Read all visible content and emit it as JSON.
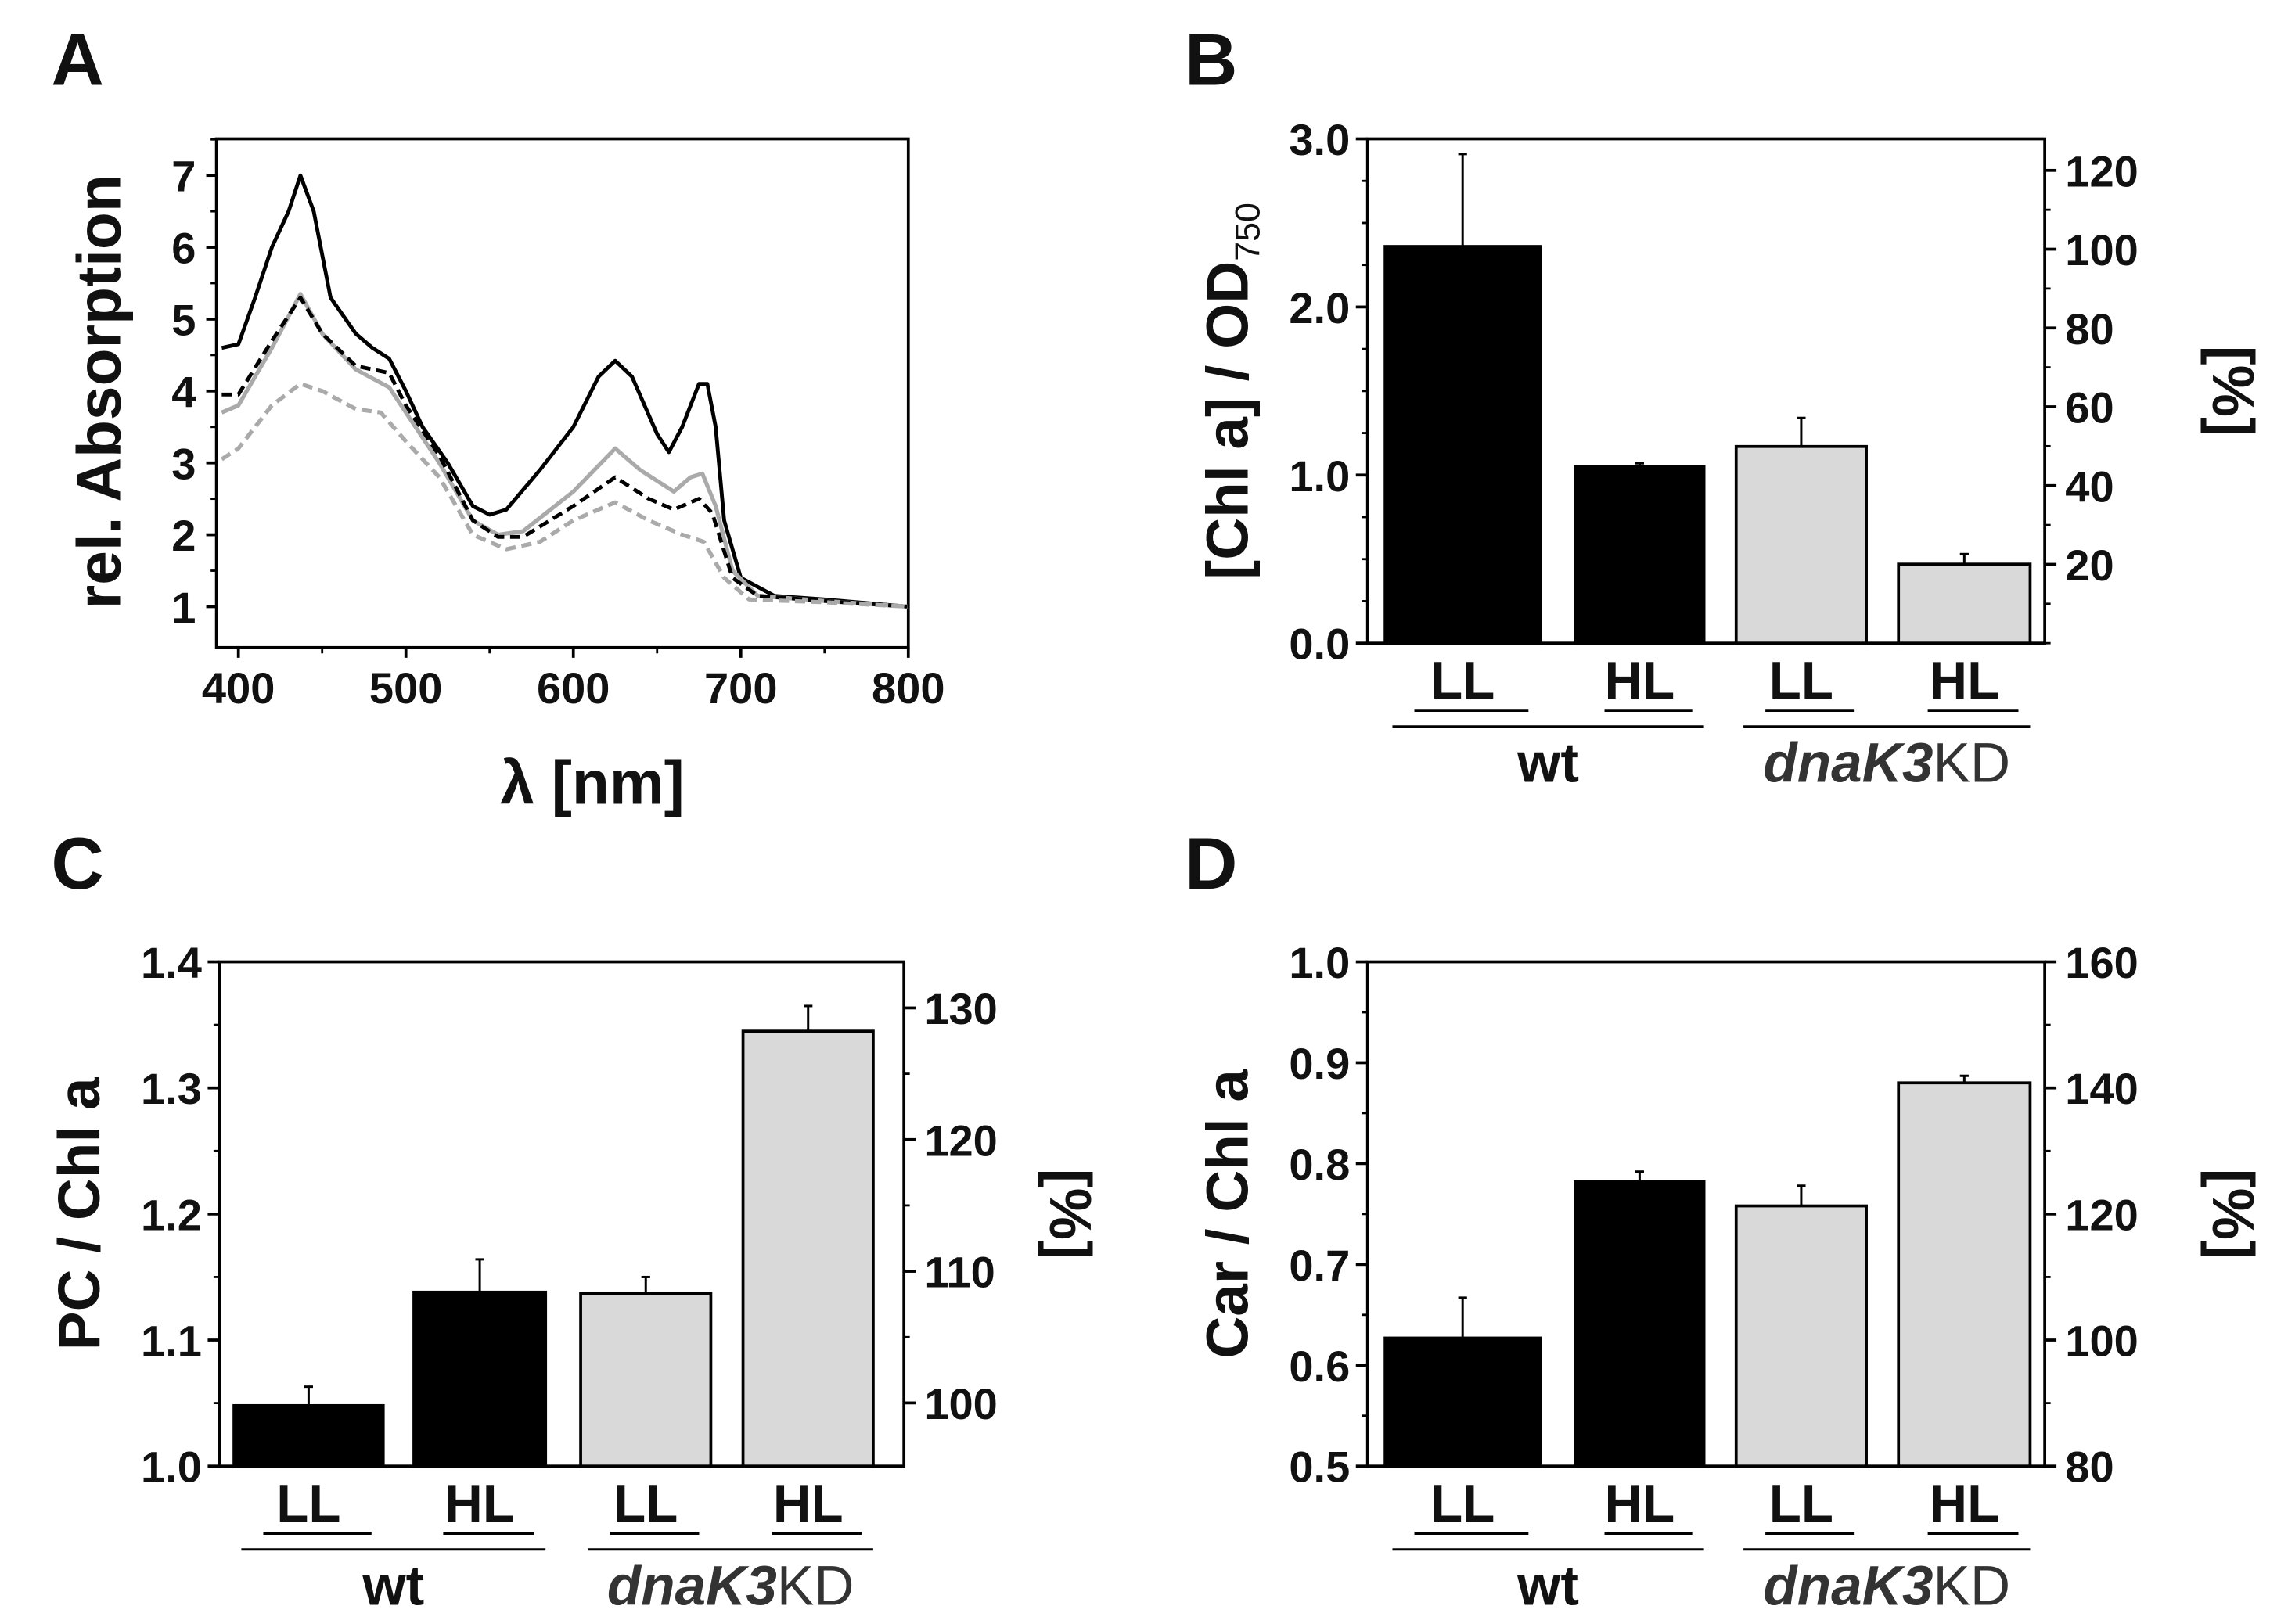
{
  "chart_data": [
    {
      "panel": "A",
      "type": "line",
      "xlabel": "λ [nm]",
      "ylabel": "rel. Absorption",
      "xlim": [
        390,
        800
      ],
      "ylim": [
        0.45,
        7.5
      ],
      "xticks": [
        "400",
        "500",
        "600",
        "700",
        "800"
      ],
      "yticks": [
        "1",
        "2",
        "3",
        "4",
        "5",
        "6",
        "7"
      ],
      "series": [
        {
          "style": "solid",
          "color": "#000000",
          "points": [
            [
              390,
              4.6
            ],
            [
              400,
              4.65
            ],
            [
              410,
              5.3
            ],
            [
              420,
              6.0
            ],
            [
              430,
              6.5
            ],
            [
              437,
              7.0
            ],
            [
              445,
              6.5
            ],
            [
              455,
              5.3
            ],
            [
              470,
              4.8
            ],
            [
              480,
              4.6
            ],
            [
              490,
              4.45
            ],
            [
              500,
              4.0
            ],
            [
              510,
              3.5
            ],
            [
              525,
              3.0
            ],
            [
              540,
              2.4
            ],
            [
              550,
              2.28
            ],
            [
              560,
              2.35
            ],
            [
              580,
              2.9
            ],
            [
              600,
              3.5
            ],
            [
              615,
              4.2
            ],
            [
              625,
              4.42
            ],
            [
              635,
              4.2
            ],
            [
              650,
              3.4
            ],
            [
              657,
              3.15
            ],
            [
              665,
              3.5
            ],
            [
              675,
              4.1
            ],
            [
              680,
              4.1
            ],
            [
              685,
              3.5
            ],
            [
              690,
              2.2
            ],
            [
              700,
              1.4
            ],
            [
              720,
              1.15
            ],
            [
              750,
              1.1
            ],
            [
              800,
              1.0
            ]
          ]
        },
        {
          "style": "solid",
          "color": "#aaaaaa",
          "points": [
            [
              390,
              3.7
            ],
            [
              400,
              3.8
            ],
            [
              420,
              4.6
            ],
            [
              437,
              5.35
            ],
            [
              450,
              4.8
            ],
            [
              470,
              4.3
            ],
            [
              490,
              4.05
            ],
            [
              500,
              3.7
            ],
            [
              520,
              3.0
            ],
            [
              540,
              2.2
            ],
            [
              555,
              2.0
            ],
            [
              570,
              2.05
            ],
            [
              600,
              2.6
            ],
            [
              625,
              3.2
            ],
            [
              640,
              2.9
            ],
            [
              660,
              2.6
            ],
            [
              670,
              2.8
            ],
            [
              677,
              2.85
            ],
            [
              685,
              2.4
            ],
            [
              695,
              1.5
            ],
            [
              710,
              1.15
            ],
            [
              750,
              1.08
            ],
            [
              800,
              1.0
            ]
          ]
        },
        {
          "style": "dashed",
          "color": "#000000",
          "points": [
            [
              390,
              3.95
            ],
            [
              400,
              3.95
            ],
            [
              420,
              4.7
            ],
            [
              437,
              5.3
            ],
            [
              450,
              4.8
            ],
            [
              470,
              4.35
            ],
            [
              490,
              4.25
            ],
            [
              500,
              3.8
            ],
            [
              520,
              3.1
            ],
            [
              540,
              2.2
            ],
            [
              555,
              1.97
            ],
            [
              570,
              1.97
            ],
            [
              600,
              2.4
            ],
            [
              625,
              2.8
            ],
            [
              645,
              2.5
            ],
            [
              660,
              2.35
            ],
            [
              675,
              2.5
            ],
            [
              683,
              2.3
            ],
            [
              695,
              1.4
            ],
            [
              710,
              1.15
            ],
            [
              750,
              1.08
            ],
            [
              800,
              1.0
            ]
          ]
        },
        {
          "style": "dashed",
          "color": "#aaaaaa",
          "points": [
            [
              390,
              3.05
            ],
            [
              400,
              3.2
            ],
            [
              420,
              3.8
            ],
            [
              437,
              4.1
            ],
            [
              450,
              4.0
            ],
            [
              470,
              3.75
            ],
            [
              485,
              3.7
            ],
            [
              500,
              3.3
            ],
            [
              520,
              2.8
            ],
            [
              540,
              2.0
            ],
            [
              560,
              1.8
            ],
            [
              580,
              1.9
            ],
            [
              600,
              2.2
            ],
            [
              625,
              2.45
            ],
            [
              645,
              2.2
            ],
            [
              665,
              2.0
            ],
            [
              678,
              1.9
            ],
            [
              690,
              1.4
            ],
            [
              705,
              1.1
            ],
            [
              750,
              1.06
            ],
            [
              800,
              1.0
            ]
          ]
        }
      ]
    },
    {
      "panel": "B",
      "type": "bar",
      "ylabel": "[Chl a] / OD",
      "ylabel_sub": "750",
      "ylabel_right": "[%]",
      "ylim": [
        0,
        3.0
      ],
      "yticks": [
        "0.0",
        "1.0",
        "2.0",
        "3.0"
      ],
      "ylim_right": [
        0,
        128
      ],
      "yticks_right": [
        "20",
        "40",
        "60",
        "80",
        "100",
        "120"
      ],
      "categories": [
        "LL",
        "HL",
        "LL",
        "HL"
      ],
      "groups": [
        "wt",
        "dnaK3KD"
      ],
      "group_italic": "dnaK3",
      "group_plain": "KD",
      "values": [
        2.36,
        1.05,
        1.17,
        0.47
      ],
      "errors": [
        0.55,
        0.02,
        0.17,
        0.06
      ],
      "colors": [
        "#000000",
        "#000000",
        "#d9d9d9",
        "#d9d9d9"
      ]
    },
    {
      "panel": "C",
      "type": "bar",
      "ylabel": "PC / Chl a",
      "ylabel_right": "[%]",
      "ylim": [
        1.0,
        1.4
      ],
      "yticks": [
        "1.0",
        "1.1",
        "1.2",
        "1.3",
        "1.4"
      ],
      "ylim_right": [
        95.2,
        133.5
      ],
      "yticks_right": [
        "100",
        "110",
        "120",
        "130"
      ],
      "categories": [
        "LL",
        "HL",
        "LL",
        "HL"
      ],
      "groups": [
        "wt",
        "dnaK3KD"
      ],
      "group_italic": "dnaK3",
      "group_plain": "KD",
      "values": [
        1.048,
        1.138,
        1.137,
        1.345
      ],
      "errors": [
        0.015,
        0.026,
        0.013,
        0.02
      ],
      "colors": [
        "#000000",
        "#000000",
        "#d9d9d9",
        "#d9d9d9"
      ]
    },
    {
      "panel": "D",
      "type": "bar",
      "ylabel": "Car / Chl a",
      "ylabel_right": "[%]",
      "ylim": [
        0.5,
        1.0
      ],
      "yticks": [
        "0.5",
        "0.6",
        "0.7",
        "0.8",
        "0.9",
        "1.0"
      ],
      "ylim_right": [
        80,
        160
      ],
      "yticks_right": [
        "80",
        "100",
        "120",
        "140",
        "160"
      ],
      "categories": [
        "LL",
        "HL",
        "LL",
        "HL"
      ],
      "groups": [
        "wt",
        "dnaK3KD"
      ],
      "group_italic": "dnaK3",
      "group_plain": "KD",
      "values": [
        0.627,
        0.782,
        0.758,
        0.88
      ],
      "errors": [
        0.04,
        0.01,
        0.02,
        0.007
      ],
      "colors": [
        "#000000",
        "#000000",
        "#d9d9d9",
        "#d9d9d9"
      ]
    }
  ]
}
